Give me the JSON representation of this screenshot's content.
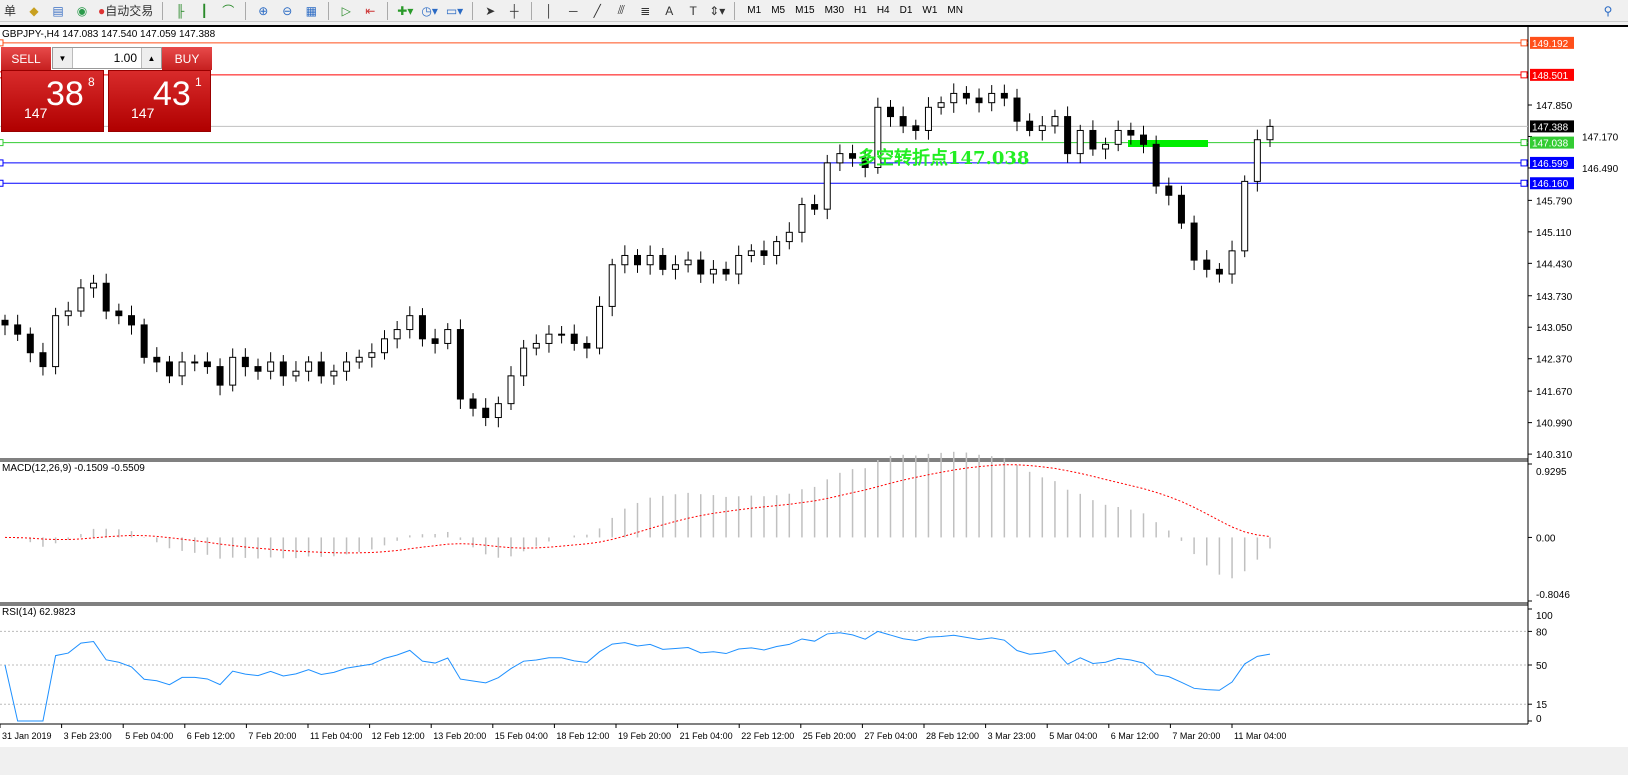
{
  "toolbar": {
    "partial_label": "单",
    "autotrade_label": "自动交易",
    "timeframes": [
      "M1",
      "M5",
      "M15",
      "M30",
      "H1",
      "H4",
      "D1",
      "W1",
      "MN"
    ],
    "icons": [
      "folder-icon",
      "profile-icon",
      "signal-icon",
      "autotrade-icon",
      "bar-chart-icon",
      "candle-chart-icon",
      "line-chart-icon",
      "zoom-in-icon",
      "zoom-out-icon",
      "tile-icon",
      "autoscroll-icon",
      "chart-shift-icon",
      "new-indicator-icon",
      "clock-icon",
      "template-icon",
      "cursor-icon",
      "crosshair-icon",
      "vertical-line-icon",
      "horizontal-line-icon",
      "trendline-icon",
      "fibo-icon",
      "fibo-fan-icon",
      "text-icon",
      "label-icon",
      "arrows-icon",
      "search-icon"
    ]
  },
  "chart": {
    "title": "GBPJPY-,H4  147.083 147.540 147.059 147.388",
    "trade_panel": {
      "sell_label": "SELL",
      "buy_label": "BUY",
      "lot": "1.00",
      "sell_price": {
        "prefix": "147",
        "big": "38",
        "sup": "8"
      },
      "buy_price": {
        "prefix": "147",
        "big": "43",
        "sup": "1"
      }
    },
    "annotation": "多空转折点147.038",
    "hlines": [
      {
        "price": "149.192",
        "color": "#ff4f1a"
      },
      {
        "price": "148.501",
        "color": "#ff0000"
      },
      {
        "price": "147.388",
        "color": "#000000"
      },
      {
        "price": "147.038",
        "color": "#33cc33"
      },
      {
        "price": "146.599",
        "color": "#0000ff"
      },
      {
        "price": "146.160",
        "color": "#0000ff"
      }
    ],
    "price_ticks": [
      "147.850",
      "147.170",
      "146.490",
      "145.790",
      "145.110",
      "144.430",
      "143.730",
      "143.050",
      "142.370",
      "141.670",
      "140.990",
      "140.310"
    ],
    "time_labels": [
      "31 Jan 2019",
      "3 Feb 23:00",
      "5 Feb 04:00",
      "6 Feb 12:00",
      "7 Feb 20:00",
      "11 Feb 04:00",
      "12 Feb 12:00",
      "13 Feb 20:00",
      "15 Feb 04:00",
      "18 Feb 12:00",
      "19 Feb 20:00",
      "21 Feb 04:00",
      "22 Feb 12:00",
      "25 Feb 20:00",
      "27 Feb 04:00",
      "28 Feb 12:00",
      "3 Mar 23:00",
      "5 Mar 04:00",
      "6 Mar 12:00",
      "7 Mar 20:00",
      "11 Mar 04:00"
    ]
  },
  "macd": {
    "label": "MACD(12,26,9) -0.1509 -0.5509",
    "ticks": [
      "0.9295",
      "0.00",
      "-0.8046"
    ],
    "signal_color": "#ff0000"
  },
  "rsi": {
    "label": "RSI(14) 62.9823",
    "ticks": [
      "100",
      "80",
      "50",
      "15",
      "0"
    ],
    "color": "#1e90ff"
  },
  "chart_data": {
    "type": "candlestick",
    "symbol": "GBPJPY-",
    "timeframe": "H4",
    "ylim": [
      140.31,
      149.192
    ],
    "closes": [
      143.1,
      142.9,
      142.5,
      142.2,
      143.3,
      143.4,
      143.9,
      144.0,
      143.4,
      143.3,
      143.1,
      142.4,
      142.3,
      142.0,
      142.3,
      142.3,
      142.2,
      141.8,
      142.4,
      142.2,
      142.1,
      142.3,
      142.0,
      142.1,
      142.3,
      142.0,
      142.1,
      142.3,
      142.4,
      142.5,
      142.8,
      143.0,
      143.3,
      142.8,
      142.7,
      143.0,
      141.5,
      141.3,
      141.1,
      141.4,
      142.0,
      142.6,
      142.7,
      142.9,
      142.9,
      142.7,
      142.6,
      143.5,
      144.4,
      144.6,
      144.4,
      144.6,
      144.3,
      144.4,
      144.5,
      144.2,
      144.3,
      144.2,
      144.6,
      144.7,
      144.6,
      144.9,
      145.1,
      145.7,
      145.6,
      146.6,
      146.8,
      146.7,
      146.5,
      147.8,
      147.6,
      147.4,
      147.3,
      147.8,
      147.9,
      148.1,
      148.0,
      147.9,
      148.1,
      148.0,
      147.5,
      147.3,
      147.4,
      147.6,
      146.8,
      147.3,
      146.9,
      147.0,
      147.3,
      147.2,
      147.0,
      146.1,
      145.9,
      145.3,
      144.5,
      144.3,
      144.2,
      144.7,
      146.2,
      147.1,
      147.388
    ]
  }
}
